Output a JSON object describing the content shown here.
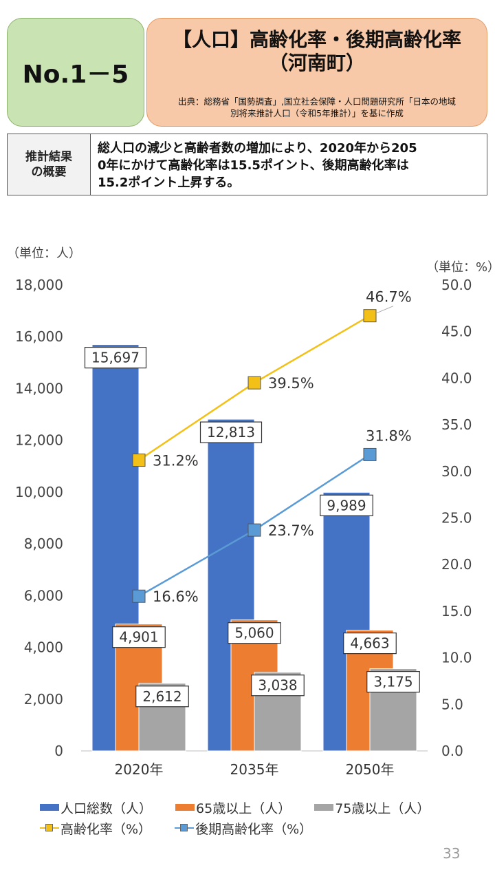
{
  "header": {
    "number": "No.1－5",
    "title_line1": "【人口】高齢化率・後期高齢化率",
    "title_line2": "（河南町）",
    "source_line1": "出典：総務省「国勢調査」,国立社会保障・人口問題研究所「日本の地域",
    "source_line2": "別将来推計人口（令和5年推計）」を基に作成"
  },
  "summary": {
    "label_line1": "推計結果",
    "label_line2": "の概要",
    "text_line1": "総人口の減少と高齢者数の増加により、2020年から205",
    "text_line2": "0年にかけて高齢化率は15.5ポイント、後期高齢化率は",
    "text_line3": "15.2ポイント上昇する。"
  },
  "page_number": "33",
  "chart_data": {
    "type": "bar",
    "categories": [
      "2020年",
      "2035年",
      "2050年"
    ],
    "unit_left": "（単位：人）",
    "unit_right": "（単位：%）",
    "ylim": [
      0,
      18000
    ],
    "y_ticks": [
      "0",
      "2,000",
      "4,000",
      "6,000",
      "8,000",
      "10,000",
      "12,000",
      "14,000",
      "16,000",
      "18,000"
    ],
    "y2lim": [
      0,
      50
    ],
    "y2_ticks": [
      "0.0",
      "5.0",
      "10.0",
      "15.0",
      "20.0",
      "25.0",
      "30.0",
      "35.0",
      "40.0",
      "45.0",
      "50.0"
    ],
    "bar_series": [
      {
        "name": "人口総数（人）",
        "color": "#4472c4",
        "values": [
          15697,
          12813,
          9989
        ],
        "labels": [
          "15,697",
          "12,813",
          "9,989"
        ]
      },
      {
        "name": "65歳以上（人）",
        "color": "#ed7d31",
        "values": [
          4901,
          5060,
          4663
        ],
        "labels": [
          "4,901",
          "5,060",
          "4,663"
        ]
      },
      {
        "name": "75歳以上（人）",
        "color": "#a5a5a5",
        "values": [
          2612,
          3038,
          3175
        ],
        "labels": [
          "2,612",
          "3,038",
          "3,175"
        ]
      }
    ],
    "line_series": [
      {
        "name": "高齢化率（%）",
        "color": "#f2c016",
        "values": [
          31.2,
          39.5,
          46.7
        ],
        "labels": [
          "31.2%",
          "39.5%",
          "46.7%"
        ]
      },
      {
        "name": "後期高齢化率（%）",
        "color": "#5b9bd5",
        "values": [
          16.6,
          23.7,
          31.8
        ],
        "labels": [
          "16.6%",
          "23.7%",
          "31.8%"
        ]
      }
    ]
  }
}
